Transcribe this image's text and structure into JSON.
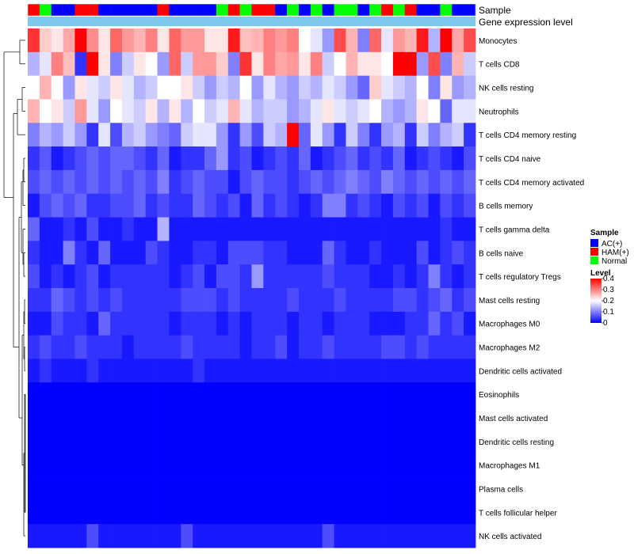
{
  "chart_data": {
    "type": "heatmap",
    "annotation_labels": {
      "sample": "Sample",
      "expression": "Gene expression level"
    },
    "rows": [
      "Monocytes",
      "T cells CD8",
      "NK cells resting",
      "Neutrophils",
      "T cells CD4 memory resting",
      "T cells CD4 naive",
      "T cells CD4 memory activated",
      "B cells memory",
      "T cells gamma delta",
      "B cells naive",
      "T cells regulatory  Tregs",
      "Mast cells resting",
      "Macrophages M0",
      "Macrophages M2",
      "Dendritic cells activated",
      "Eosinophils",
      "Mast cells activated",
      "Dendritic cells resting",
      "Macrophages M1",
      "Plasma cells",
      "T cells follicular helper",
      "NK cells activated"
    ],
    "sample_groups": [
      "HAM(+)",
      "Normal",
      "AC(+)",
      "AC(+)",
      "HAM(+)",
      "HAM(+)",
      "AC(+)",
      "AC(+)",
      "AC(+)",
      "AC(+)",
      "AC(+)",
      "HAM(+)",
      "AC(+)",
      "AC(+)",
      "AC(+)",
      "AC(+)",
      "Normal",
      "HAM(+)",
      "Normal",
      "HAM(+)",
      "HAM(+)",
      "AC(+)",
      "Normal",
      "AC(+)",
      "Normal",
      "AC(+)",
      "Normal",
      "Normal",
      "AC(+)",
      "Normal",
      "HAM(+)",
      "Normal",
      "HAM(+)",
      "AC(+)",
      "AC(+)",
      "Normal",
      "AC(+)",
      "AC(+)"
    ],
    "values": [
      [
        0.36,
        0.24,
        0.22,
        0.27,
        0.4,
        0.29,
        0.22,
        0.32,
        0.28,
        0.26,
        0.3,
        0.22,
        0.32,
        0.28,
        0.28,
        0.22,
        0.22,
        0.38,
        0.25,
        0.26,
        0.3,
        0.28,
        0.3,
        0.2,
        0.18,
        0.12,
        0.34,
        0.26,
        0.1,
        0.32,
        0.18,
        0.28,
        0.26,
        0.38,
        0.14,
        0.4,
        0.27,
        0.34
      ],
      [
        0.14,
        0.18,
        0.3,
        0.25,
        0.04,
        0.4,
        0.22,
        0.1,
        0.16,
        0.22,
        0.2,
        0.12,
        0.32,
        0.16,
        0.28,
        0.28,
        0.24,
        0.1,
        0.36,
        0.22,
        0.3,
        0.27,
        0.28,
        0.22,
        0.3,
        0.16,
        0.2,
        0.26,
        0.22,
        0.22,
        0.2,
        0.4,
        0.4,
        0.12,
        0.34,
        0.1,
        0.26,
        0.16
      ],
      [
        0.2,
        0.26,
        0.2,
        0.12,
        0.22,
        0.18,
        0.16,
        0.22,
        0.18,
        0.14,
        0.16,
        0.2,
        0.2,
        0.22,
        0.16,
        0.12,
        0.16,
        0.14,
        0.2,
        0.12,
        0.18,
        0.14,
        0.12,
        0.16,
        0.14,
        0.18,
        0.16,
        0.12,
        0.08,
        0.24,
        0.18,
        0.16,
        0.14,
        0.2,
        0.1,
        0.22,
        0.12,
        0.14
      ],
      [
        0.26,
        0.2,
        0.22,
        0.16,
        0.28,
        0.18,
        0.12,
        0.2,
        0.18,
        0.16,
        0.22,
        0.14,
        0.22,
        0.14,
        0.2,
        0.16,
        0.18,
        0.26,
        0.18,
        0.14,
        0.16,
        0.16,
        0.12,
        0.14,
        0.18,
        0.22,
        0.18,
        0.16,
        0.18,
        0.2,
        0.14,
        0.12,
        0.14,
        0.22,
        0.2,
        0.08,
        0.18,
        0.18
      ],
      [
        0.1,
        0.14,
        0.12,
        0.16,
        0.12,
        0.04,
        0.18,
        0.06,
        0.14,
        0.16,
        0.12,
        0.1,
        0.08,
        0.16,
        0.18,
        0.18,
        0.12,
        0.04,
        0.12,
        0.06,
        0.16,
        0.14,
        0.4,
        0.08,
        0.18,
        0.12,
        0.04,
        0.16,
        0.1,
        0.04,
        0.12,
        0.14,
        0.04,
        0.16,
        0.1,
        0.14,
        0.16,
        0.04
      ],
      [
        0.04,
        0.07,
        0.02,
        0.04,
        0.06,
        0.08,
        0.06,
        0.08,
        0.08,
        0.06,
        0.04,
        0.08,
        0.02,
        0.04,
        0.04,
        0.08,
        0.12,
        0.04,
        0.06,
        0.02,
        0.04,
        0.06,
        0.04,
        0.08,
        0.02,
        0.04,
        0.06,
        0.08,
        0.04,
        0.06,
        0.04,
        0.08,
        0.02,
        0.04,
        0.06,
        0.04,
        0.02,
        0.06
      ],
      [
        0.06,
        0.08,
        0.06,
        0.08,
        0.06,
        0.08,
        0.06,
        0.08,
        0.06,
        0.08,
        0.06,
        0.1,
        0.04,
        0.06,
        0.08,
        0.06,
        0.06,
        0.02,
        0.06,
        0.08,
        0.06,
        0.06,
        0.04,
        0.06,
        0.08,
        0.06,
        0.08,
        0.1,
        0.08,
        0.06,
        0.1,
        0.08,
        0.06,
        0.08,
        0.06,
        0.08,
        0.06,
        0.08
      ],
      [
        0.02,
        0.06,
        0.08,
        0.06,
        0.08,
        0.04,
        0.04,
        0.06,
        0.06,
        0.08,
        0.04,
        0.06,
        0.04,
        0.04,
        0.08,
        0.06,
        0.04,
        0.06,
        0.02,
        0.08,
        0.04,
        0.06,
        0.04,
        0.02,
        0.04,
        0.1,
        0.1,
        0.04,
        0.06,
        0.04,
        0.02,
        0.06,
        0.04,
        0.06,
        0.02,
        0.06,
        0.04,
        0.06
      ],
      [
        0.08,
        0.02,
        0.02,
        0.04,
        0.02,
        0.06,
        0.02,
        0.02,
        0.04,
        0.02,
        0.02,
        0.14,
        0.02,
        0.02,
        0.02,
        0.02,
        0.02,
        0.02,
        0.02,
        0.02,
        0.02,
        0.02,
        0.02,
        0.02,
        0.02,
        0.02,
        0.02,
        0.02,
        0.02,
        0.02,
        0.02,
        0.02,
        0.02,
        0.02,
        0.02,
        0.04,
        0.02,
        0.02
      ],
      [
        0.04,
        0.02,
        0.02,
        0.1,
        0.04,
        0.02,
        0.08,
        0.02,
        0.02,
        0.02,
        0.06,
        0.04,
        0.02,
        0.02,
        0.04,
        0.04,
        0.02,
        0.06,
        0.06,
        0.06,
        0.04,
        0.04,
        0.02,
        0.02,
        0.02,
        0.08,
        0.04,
        0.02,
        0.02,
        0.04,
        0.02,
        0.02,
        0.02,
        0.06,
        0.02,
        0.04,
        0.06,
        0.04
      ],
      [
        0.06,
        0.02,
        0.04,
        0.02,
        0.04,
        0.06,
        0.02,
        0.04,
        0.04,
        0.04,
        0.04,
        0.04,
        0.02,
        0.04,
        0.06,
        0.02,
        0.06,
        0.06,
        0.04,
        0.12,
        0.04,
        0.04,
        0.04,
        0.04,
        0.04,
        0.06,
        0.04,
        0.04,
        0.04,
        0.02,
        0.02,
        0.04,
        0.02,
        0.04,
        0.1,
        0.04,
        0.02,
        0.04
      ],
      [
        0.04,
        0.04,
        0.08,
        0.06,
        0.04,
        0.06,
        0.04,
        0.06,
        0.04,
        0.04,
        0.04,
        0.04,
        0.04,
        0.06,
        0.06,
        0.06,
        0.04,
        0.06,
        0.04,
        0.04,
        0.04,
        0.04,
        0.06,
        0.04,
        0.04,
        0.04,
        0.06,
        0.04,
        0.04,
        0.04,
        0.04,
        0.06,
        0.06,
        0.04,
        0.06,
        0.08,
        0.04,
        0.06
      ],
      [
        0.02,
        0.02,
        0.06,
        0.04,
        0.04,
        0.02,
        0.08,
        0.04,
        0.04,
        0.04,
        0.04,
        0.04,
        0.02,
        0.04,
        0.04,
        0.04,
        0.02,
        0.04,
        0.02,
        0.04,
        0.04,
        0.04,
        0.02,
        0.04,
        0.04,
        0.02,
        0.04,
        0.04,
        0.04,
        0.02,
        0.02,
        0.02,
        0.04,
        0.04,
        0.08,
        0.04,
        0.06,
        0.02
      ],
      [
        0.04,
        0.06,
        0.04,
        0.04,
        0.06,
        0.04,
        0.04,
        0.04,
        0.02,
        0.04,
        0.04,
        0.04,
        0.04,
        0.06,
        0.04,
        0.04,
        0.04,
        0.04,
        0.02,
        0.04,
        0.04,
        0.06,
        0.02,
        0.04,
        0.04,
        0.06,
        0.04,
        0.04,
        0.04,
        0.04,
        0.06,
        0.06,
        0.04,
        0.06,
        0.04,
        0.04,
        0.04,
        0.04
      ],
      [
        0.02,
        0.04,
        0.02,
        0.02,
        0.02,
        0.04,
        0.02,
        0.02,
        0.02,
        0.02,
        0.02,
        0.02,
        0.02,
        0.02,
        0.04,
        0.02,
        0.02,
        0.02,
        0.02,
        0.02,
        0.02,
        0.02,
        0.02,
        0.02,
        0.02,
        0.02,
        0.02,
        0.02,
        0.02,
        0.02,
        0.02,
        0.02,
        0.02,
        0.02,
        0.02,
        0.02,
        0.02,
        0.02
      ],
      [
        0,
        0,
        0,
        0,
        0,
        0,
        0,
        0,
        0,
        0,
        0,
        0,
        0,
        0,
        0,
        0,
        0,
        0,
        0,
        0,
        0,
        0,
        0,
        0,
        0,
        0,
        0,
        0,
        0,
        0,
        0,
        0,
        0,
        0,
        0,
        0,
        0,
        0
      ],
      [
        0,
        0,
        0,
        0,
        0,
        0,
        0,
        0,
        0,
        0,
        0,
        0,
        0,
        0,
        0,
        0,
        0,
        0,
        0,
        0,
        0,
        0,
        0,
        0,
        0,
        0,
        0,
        0,
        0,
        0,
        0,
        0,
        0,
        0,
        0,
        0,
        0,
        0
      ],
      [
        0,
        0,
        0,
        0,
        0,
        0,
        0,
        0,
        0,
        0,
        0,
        0,
        0,
        0,
        0,
        0,
        0,
        0,
        0,
        0,
        0,
        0,
        0,
        0,
        0,
        0,
        0,
        0,
        0,
        0,
        0,
        0,
        0,
        0,
        0,
        0,
        0,
        0
      ],
      [
        0,
        0,
        0,
        0,
        0,
        0,
        0,
        0,
        0,
        0,
        0,
        0,
        0,
        0,
        0,
        0,
        0,
        0,
        0,
        0,
        0,
        0,
        0,
        0,
        0,
        0,
        0,
        0,
        0,
        0,
        0,
        0,
        0,
        0,
        0,
        0,
        0,
        0
      ],
      [
        0,
        0,
        0,
        0,
        0,
        0,
        0,
        0,
        0,
        0,
        0,
        0,
        0,
        0,
        0,
        0,
        0,
        0,
        0,
        0,
        0,
        0,
        0,
        0,
        0,
        0,
        0,
        0,
        0,
        0,
        0,
        0,
        0,
        0,
        0,
        0,
        0,
        0
      ],
      [
        0,
        0,
        0,
        0,
        0,
        0,
        0,
        0,
        0,
        0,
        0,
        0,
        0,
        0,
        0,
        0,
        0,
        0,
        0,
        0,
        0,
        0,
        0,
        0,
        0,
        0,
        0,
        0,
        0,
        0,
        0,
        0,
        0,
        0,
        0,
        0,
        0,
        0
      ],
      [
        0.02,
        0.02,
        0.02,
        0.02,
        0.02,
        0.06,
        0.02,
        0.02,
        0.02,
        0.02,
        0.02,
        0.02,
        0.02,
        0.06,
        0.02,
        0.02,
        0.02,
        0.02,
        0.02,
        0.02,
        0.02,
        0.02,
        0.02,
        0.02,
        0.02,
        0.06,
        0.02,
        0.02,
        0.02,
        0.02,
        0.02,
        0.02,
        0.02,
        0.02,
        0.02,
        0.02,
        0.02,
        0.02
      ]
    ],
    "color_scale": {
      "min": 0,
      "mid": 0.2,
      "max": 0.4,
      "low": "#0000ff",
      "mid_color": "#ffffff",
      "high": "#ff0000"
    },
    "legend": {
      "sample_title": "Sample",
      "groups": [
        {
          "name": "AC(+)",
          "color": "#0000ff"
        },
        {
          "name": "HAM(+)",
          "color": "#ff0000"
        },
        {
          "name": "Normal",
          "color": "#00ff00"
        }
      ],
      "level_title": "Level",
      "ticks": [
        {
          "value": 0.4,
          "label": "0.4"
        },
        {
          "value": 0.3,
          "label": "0.3"
        },
        {
          "value": 0.2,
          "label": "0.2"
        },
        {
          "value": 0.1,
          "label": "0.1"
        },
        {
          "value": 0,
          "label": "0"
        }
      ]
    },
    "expression_band_color": "#7ec8ee"
  }
}
